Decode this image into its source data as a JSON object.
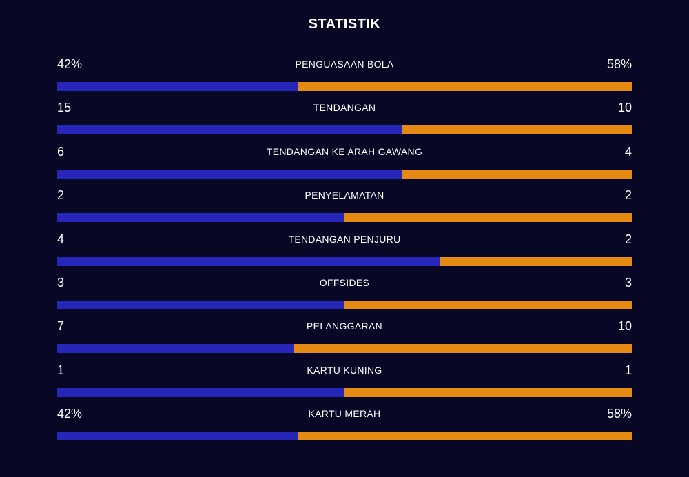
{
  "title": "STATISTIK",
  "colors": {
    "background": "#080826",
    "home_bar": "#2626b8",
    "away_bar": "#e58a12",
    "text": "#ffffff"
  },
  "stats": [
    {
      "label": "PENGUASAAN BOLA",
      "home": "42%",
      "away": "58%",
      "home_share": 0.42
    },
    {
      "label": "TENDANGAN",
      "home": "15",
      "away": "10",
      "home_share": 0.6
    },
    {
      "label": "TENDANGAN KE ARAH GAWANG",
      "home": "6",
      "away": "4",
      "home_share": 0.6
    },
    {
      "label": "PENYELAMATAN",
      "home": "2",
      "away": "2",
      "home_share": 0.5
    },
    {
      "label": "TENDANGAN PENJURU",
      "home": "4",
      "away": "2",
      "home_share": 0.6667
    },
    {
      "label": "OFFSIDES",
      "home": "3",
      "away": "3",
      "home_share": 0.5
    },
    {
      "label": "PELANGGARAN",
      "home": "7",
      "away": "10",
      "home_share": 0.4118
    },
    {
      "label": "KARTU KUNING",
      "home": "1",
      "away": "1",
      "home_share": 0.5
    },
    {
      "label": "KARTU MERAH",
      "home": "42%",
      "away": "58%",
      "home_share": 0.42
    }
  ]
}
